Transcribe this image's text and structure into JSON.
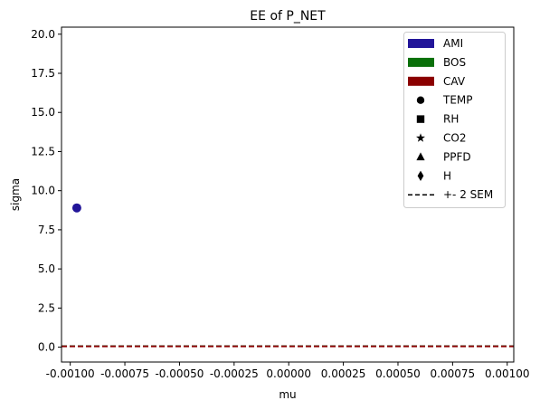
{
  "chart_data": {
    "type": "scatter",
    "title": "EE of P_NET",
    "xlabel": "mu",
    "ylabel": "sigma",
    "xlim": [
      -0.00104,
      0.00103
    ],
    "ylim": [
      -0.95,
      20.45
    ],
    "x_ticks": [
      -0.001,
      -0.00075,
      -0.0005,
      -0.00025,
      0.0,
      0.00025,
      0.0005,
      0.00075,
      0.001
    ],
    "x_tick_labels": [
      "-0.00100",
      "-0.00075",
      "-0.00050",
      "-0.00025",
      "0.00000",
      "0.00025",
      "0.00050",
      "0.00075",
      "0.00100"
    ],
    "y_ticks": [
      0.0,
      2.5,
      5.0,
      7.5,
      10.0,
      12.5,
      15.0,
      17.5,
      20.0
    ],
    "y_tick_labels": [
      "0.0",
      "2.5",
      "5.0",
      "7.5",
      "10.0",
      "12.5",
      "15.0",
      "17.5",
      "20.0"
    ],
    "grid": false,
    "legend_position": "top-right",
    "series": [
      {
        "name": "AMI",
        "color": "#221599",
        "marker": "circle",
        "points": [
          {
            "x": -0.00097,
            "y": 8.9,
            "label": "TEMP"
          }
        ]
      },
      {
        "name": "BOS",
        "color": "#0a700a",
        "marker": "circle",
        "points": []
      },
      {
        "name": "CAV",
        "color": "#8b0000",
        "marker": "circle",
        "points": []
      }
    ],
    "sem_lines": [
      {
        "color": "#221599",
        "y": 0.07
      },
      {
        "color": "#0a700a",
        "y": 0.06
      },
      {
        "color": "#8b0000",
        "y": 0.05
      }
    ],
    "legend": {
      "colors": [
        {
          "label": "AMI",
          "color": "#221599"
        },
        {
          "label": "BOS",
          "color": "#0a700a"
        },
        {
          "label": "CAV",
          "color": "#8b0000"
        }
      ],
      "markers": [
        {
          "label": "TEMP",
          "shape": "circle"
        },
        {
          "label": "RH",
          "shape": "square"
        },
        {
          "label": "CO2",
          "shape": "star"
        },
        {
          "label": "PPFD",
          "shape": "triangle"
        },
        {
          "label": "H",
          "shape": "diamond"
        }
      ],
      "line": {
        "label": "+- 2 SEM",
        "style": "dashed"
      }
    }
  }
}
